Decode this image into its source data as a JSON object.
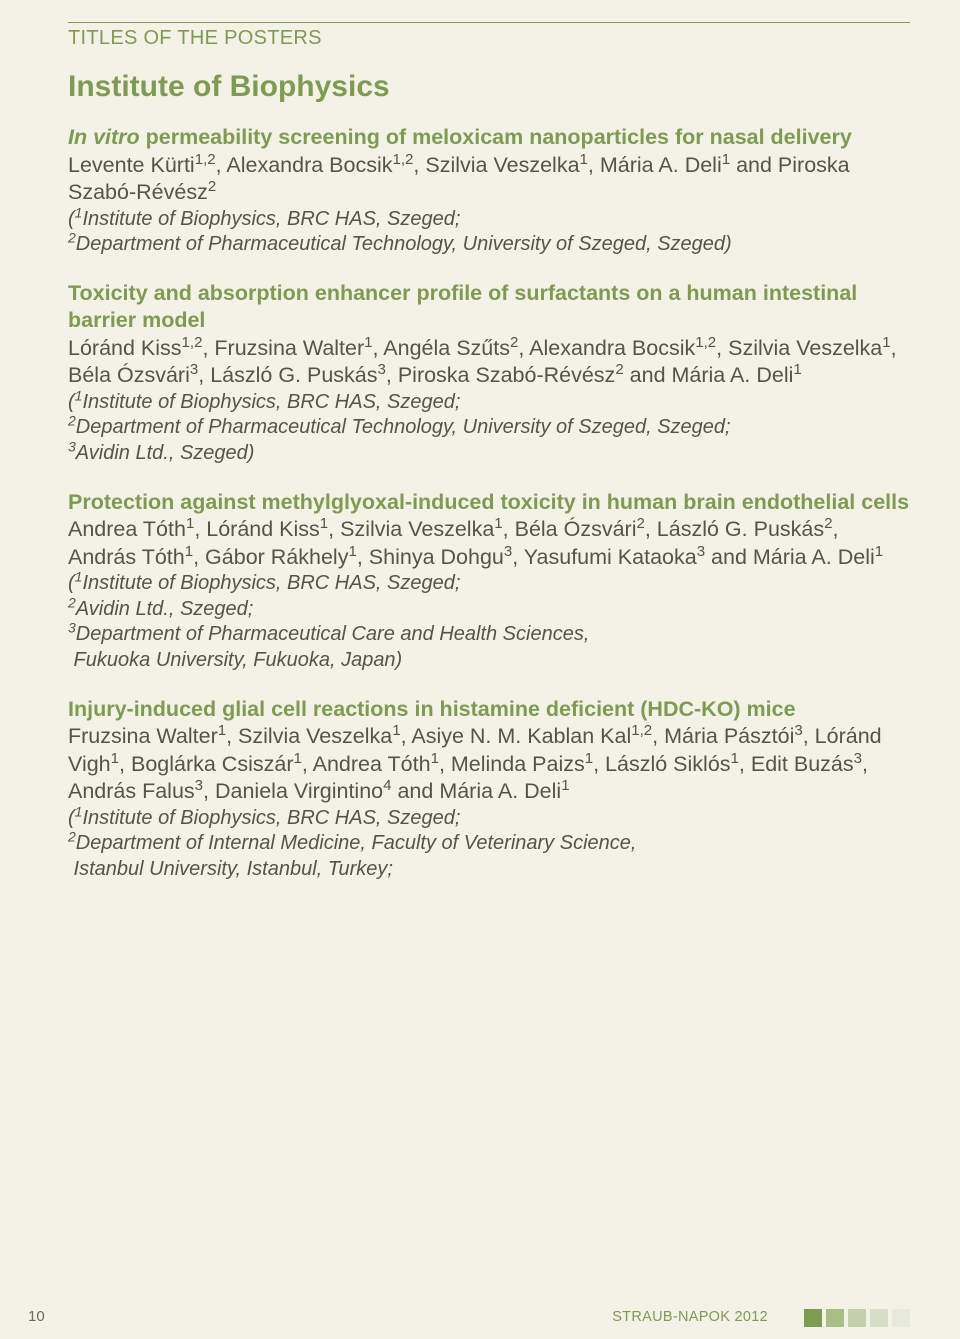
{
  "colors": {
    "page_bg": "#f4f1e6",
    "accent": "#7E9B52",
    "body_text": "#555546",
    "squares": [
      "#7E9B52",
      "#a9bd87",
      "#c3d0ab",
      "#d7dfc6",
      "#e6ead8"
    ]
  },
  "typography": {
    "section_header_fontsize": 20,
    "institute_fontsize": 30,
    "title_fontsize": 21.5,
    "authors_fontsize": 21.5,
    "affil_fontsize": 20,
    "page_num_fontsize": 15,
    "footer_label_fontsize": 14.5
  },
  "section_header": "TITLES OF THE POSTERS",
  "institute": "Institute of Biophysics",
  "entries": [
    {
      "title_prefix_italic": "In vitro",
      "title_rest": " permeability screening of meloxicam nanoparticles for nasal delivery",
      "authors_html": "Levente Kürti<sup>1,2</sup>, Alexandra Bocsik<sup>1,2</sup>, Szilvia Veszelka<sup>1</sup>, Mária A. Deli<sup>1</sup> and Piroska Szabó-Révész<sup>2</sup>",
      "affil_html": "(<sup>1</sup>Institute of Biophysics, BRC HAS, Szeged;<br><sup>2</sup>Department of Pharmaceutical Technology, University of Szeged, Szeged)"
    },
    {
      "title": "Toxicity and absorption enhancer profile of surfactants on a human intestinal barrier model",
      "authors_html": "Lóránd Kiss<sup>1,2</sup>, Fruzsina Walter<sup>1</sup>, Angéla Szűts<sup>2</sup>, Alexandra Bocsik<sup>1,2</sup>, Szilvia Veszelka<sup>1</sup>, Béla Ózsvári<sup>3</sup>, László G. Puskás<sup>3</sup>, Piroska Szabó-Révész<sup>2</sup> and Mária A. Deli<sup>1</sup>",
      "affil_html": "(<sup>1</sup>Institute of Biophysics, BRC HAS, Szeged;<br><sup>2</sup>Department of Pharmaceutical Technology, University of Szeged, Szeged;<br><sup>3</sup>Avidin Ltd., Szeged)"
    },
    {
      "title": "Protection against methylglyoxal-induced toxicity in human brain endothelial cells",
      "authors_html": "Andrea Tóth<sup>1</sup>, Lóránd Kiss<sup>1</sup>, Szilvia Veszelka<sup>1</sup>, Béla Ózsvári<sup>2</sup>, László G. Puskás<sup>2</sup>, András Tóth<sup>1</sup>, Gábor Rákhely<sup>1</sup>, Shinya Dohgu<sup>3</sup>, Yasufumi Kataoka<sup>3</sup> and Mária A. Deli<sup>1</sup>",
      "affil_html": "(<sup>1</sup>Institute of Biophysics, BRC HAS, Szeged;<br><sup>2</sup>Avidin Ltd., Szeged;<br><sup>3</sup>Department of Pharmaceutical Care and Health Sciences,<br>&nbsp;Fukuoka University, Fukuoka, Japan)"
    },
    {
      "title": "Injury-induced glial cell reactions in histamine deficient (HDC-KO) mice",
      "authors_html": "Fruzsina Walter<sup>1</sup>, Szilvia Veszelka<sup>1</sup>, Asiye N. M. Kablan Kal<sup>1,2</sup>, Mária Pásztói<sup>3</sup>, Lóránd Vigh<sup>1</sup>, Boglárka Csiszár<sup>1</sup>, Andrea Tóth<sup>1</sup>, Melinda Paizs<sup>1</sup>, László Siklós<sup>1</sup>, Edit Buzás<sup>3</sup>, András Falus<sup>3</sup>, Daniela Virgintino<sup>4</sup> and Mária A. Deli<sup>1</sup>",
      "affil_html": "(<sup>1</sup>Institute of Biophysics, BRC HAS, Szeged;<br><sup>2</sup>Department of Internal Medicine, Faculty of Veterinary Science,<br>&nbsp;Istanbul University, Istanbul, Turkey;"
    }
  ],
  "footer": {
    "page_number": "10",
    "label": "STRAUB-NAPOK 2012"
  }
}
